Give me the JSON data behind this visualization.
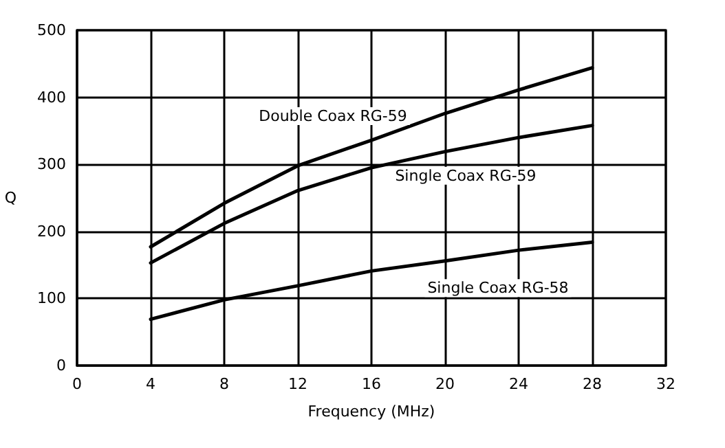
{
  "chart_data": {
    "type": "line",
    "xlabel": "Frequency (MHz)",
    "ylabel": "Q",
    "x": [
      4,
      8,
      12,
      16,
      20,
      24,
      28
    ],
    "series": [
      {
        "name": "Double Coax RG-59",
        "color": "#000000",
        "values": [
          177,
          242,
          298,
          336,
          376,
          411,
          444
        ]
      },
      {
        "name": "Single Coax RG-59",
        "color": "#000000",
        "values": [
          153,
          212,
          261,
          295,
          319,
          340,
          358
        ]
      },
      {
        "name": "Single Coax RG-58",
        "color": "#000000",
        "values": [
          69,
          98,
          119,
          141,
          156,
          172,
          184
        ]
      }
    ],
    "xlim": [
      0,
      32
    ],
    "xticks": [
      0,
      4,
      8,
      12,
      16,
      20,
      24,
      28,
      32
    ],
    "ylim": [
      0,
      500
    ],
    "yticks": [
      0,
      100,
      200,
      300,
      400,
      500
    ],
    "grid": true,
    "marker": "none",
    "line_style": "solid"
  }
}
